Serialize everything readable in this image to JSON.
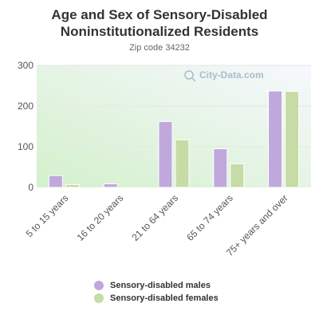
{
  "title_line1": "Age and Sex of Sensory-Disabled",
  "title_line2": "Noninstitutionalized Residents",
  "subtitle": "Zip code 34232",
  "watermark": "City-Data.com",
  "colors": {
    "males": "#c0a8dc",
    "females": "#c6dba6",
    "axis_text": "#555555",
    "grid": "#e6e6e6"
  },
  "chart_data": {
    "type": "bar",
    "categories": [
      "5 to 15 years",
      "16 to 20 years",
      "21 to 64 years",
      "65 to 74 years",
      "75+ years and over"
    ],
    "series": [
      {
        "name": "Sensory-disabled males",
        "values": [
          29,
          9,
          162,
          95,
          237
        ]
      },
      {
        "name": "Sensory-disabled females",
        "values": [
          7,
          0,
          117,
          58,
          236
        ]
      }
    ],
    "yticks": [
      0,
      100,
      200,
      300
    ],
    "ylim": [
      0,
      300
    ],
    "grid": true,
    "legend_position": "bottom"
  }
}
